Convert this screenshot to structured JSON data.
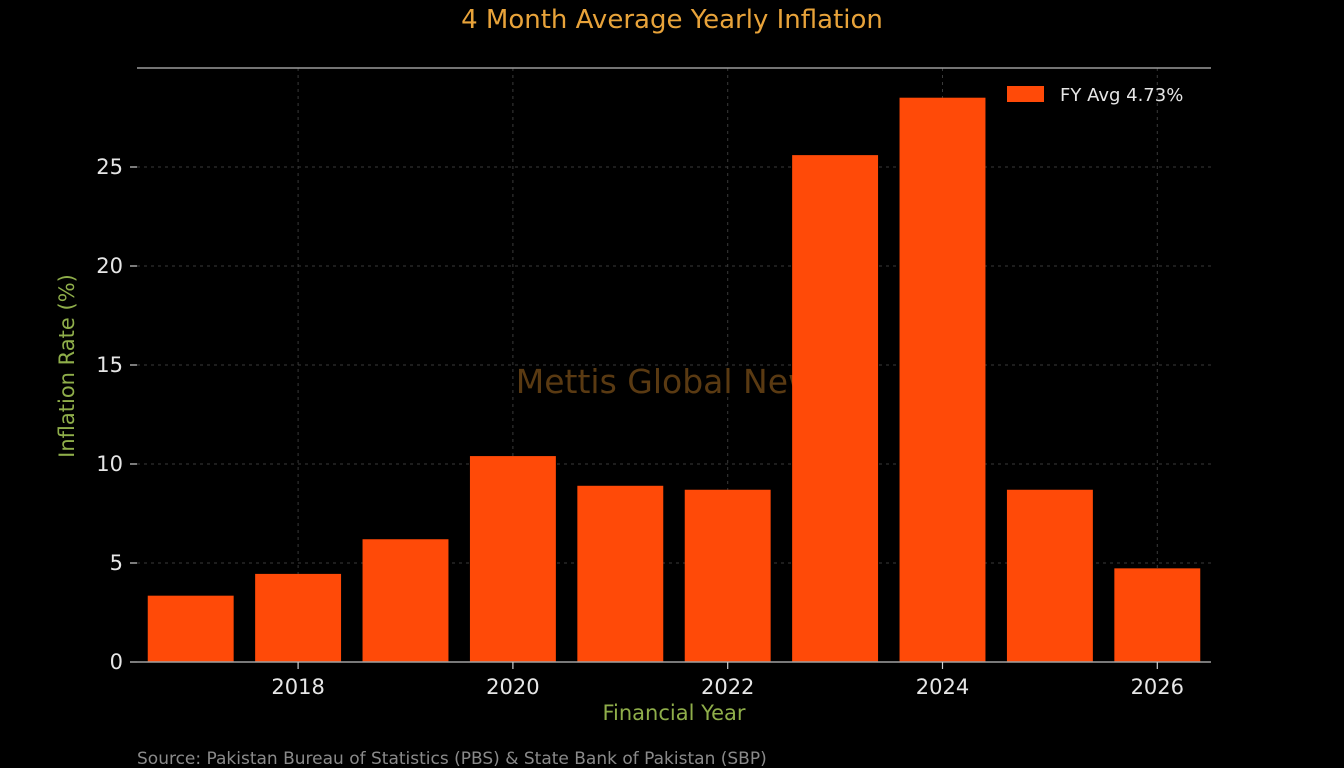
{
  "colors": {
    "background": "#000000",
    "bar": "#ff4a08",
    "title": "#e8a33a",
    "axis_label": "#8fae4a",
    "watermark": "#5a3a12",
    "grid": "#3a3a3a",
    "axis": "#8a8a8a"
  },
  "chart_data": {
    "type": "bar",
    "title": "4 Month Average Yearly Inflation",
    "xlabel": "Financial Year",
    "ylabel": "Inflation Rate (%)",
    "categories": [
      2017,
      2018,
      2019,
      2020,
      2021,
      2022,
      2023,
      2024,
      2025,
      2026
    ],
    "x_tick_labels": [
      "2018",
      "2020",
      "2022",
      "2024",
      "2026"
    ],
    "x_tick_values": [
      2018,
      2020,
      2022,
      2024,
      2026
    ],
    "series": [
      {
        "name": "FY Avg 4.73%",
        "values": [
          3.35,
          4.45,
          6.2,
          10.4,
          8.9,
          8.7,
          25.6,
          28.5,
          8.7,
          4.73
        ]
      }
    ],
    "y_ticks": [
      0,
      5,
      10,
      15,
      20,
      25
    ],
    "y_tick_labels": [
      "0",
      "5",
      "10",
      "15",
      "20",
      "25"
    ],
    "ylim": [
      0,
      30
    ],
    "xlim": [
      2016.5,
      2026.5
    ],
    "grid": true,
    "legend_position": "top-right",
    "watermark": "Mettis Global News",
    "source": "Source: Pakistan Bureau of Statistics (PBS) & State Bank of Pakistan (SBP)"
  }
}
